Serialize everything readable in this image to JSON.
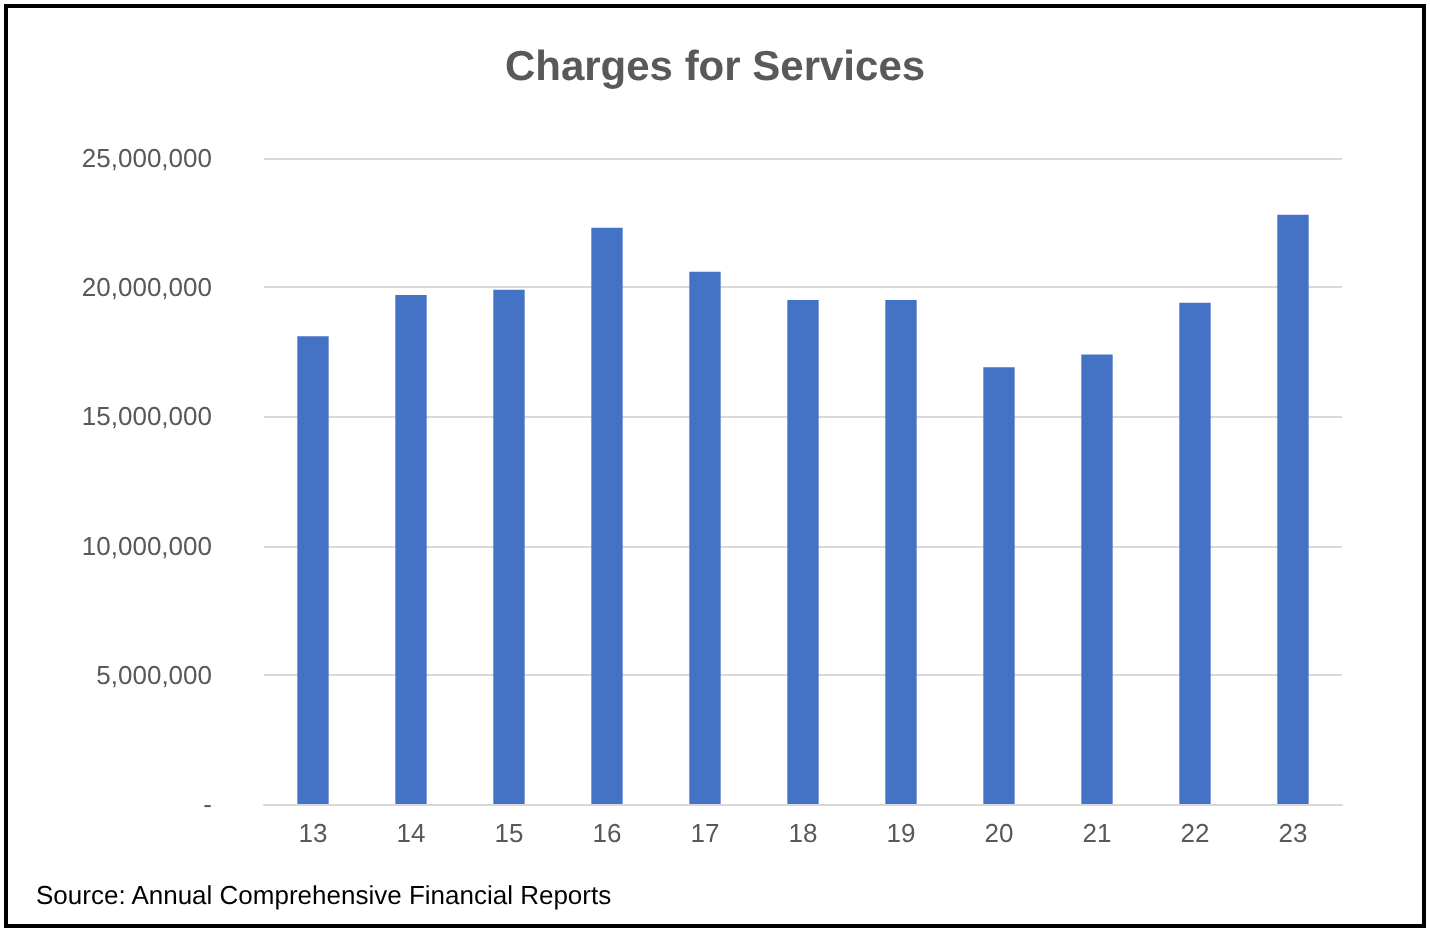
{
  "chart_data": {
    "type": "bar",
    "title": "Charges for Services",
    "categories": [
      "13",
      "14",
      "15",
      "16",
      "17",
      "18",
      "19",
      "20",
      "21",
      "22",
      "23"
    ],
    "values": [
      18100000,
      19700000,
      19900000,
      22300000,
      20600000,
      19500000,
      19500000,
      16900000,
      17400000,
      19400000,
      22800000
    ],
    "color": "#4472c4",
    "ylim": [
      0,
      25000000
    ],
    "yticks": [
      {
        "value": 0,
        "label": "-"
      },
      {
        "value": 5000000,
        "label": "5,000,000"
      },
      {
        "value": 10000000,
        "label": "10,000,000"
      },
      {
        "value": 15000000,
        "label": "15,000,000"
      },
      {
        "value": 20000000,
        "label": "20,000,000"
      },
      {
        "value": 25000000,
        "label": "25,000,000"
      }
    ],
    "grid": "y",
    "annotations": [
      "Source: Annual Comprehensive Financial Reports"
    ]
  }
}
